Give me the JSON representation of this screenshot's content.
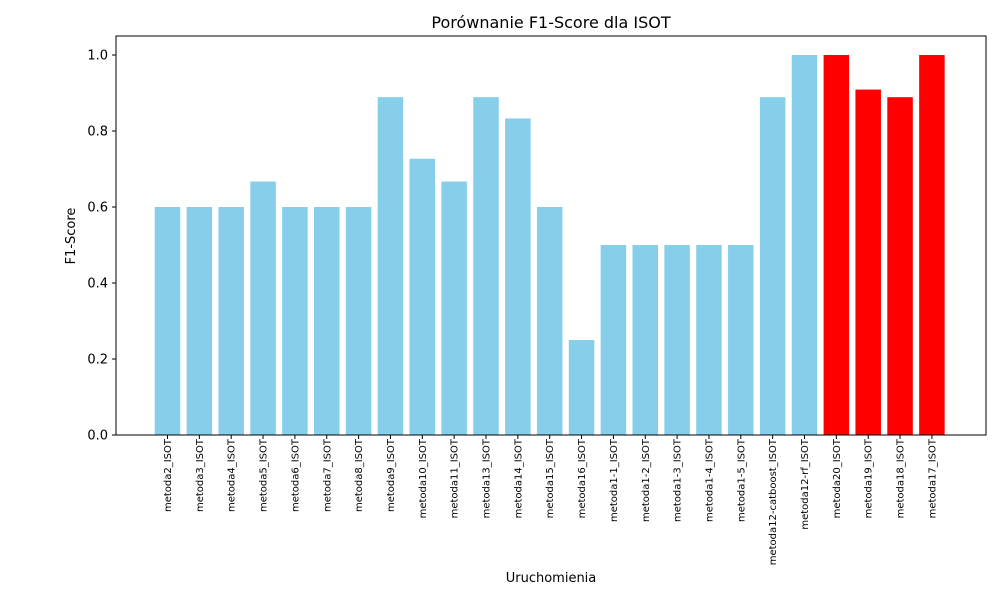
{
  "chart_data": {
    "type": "bar",
    "title": "Porównanie F1-Score dla ISOT",
    "xlabel": "Uruchomienia",
    "ylabel": "F1-Score",
    "ylim": [
      0,
      1.05
    ],
    "yticks": [
      "0.0",
      "0.2",
      "0.4",
      "0.6",
      "0.8",
      "1.0"
    ],
    "grid": false,
    "categories": [
      "metoda2_ISOT",
      "metoda3_ISOT",
      "metoda4_ISOT",
      "metoda5_ISOT",
      "metoda6_ISOT",
      "metoda7_ISOT",
      "metoda8_ISOT",
      "metoda9_ISOT",
      "metoda10_ISOT",
      "metoda11_ISOT",
      "metoda13_ISOT",
      "metoda14_ISOT",
      "metoda15_ISOT",
      "metoda16_ISOT",
      "metoda1-1_ISOT",
      "metoda1-2_ISOT",
      "metoda1-3_ISOT",
      "metoda1-4_ISOT",
      "metoda1-5_ISOT",
      "metoda12-catboost_ISOT",
      "metoda12-rf_ISOT",
      "metoda20_ISOT",
      "metoda19_ISOT",
      "metoda18_ISOT",
      "metoda17_ISOT"
    ],
    "values": [
      0.6,
      0.6,
      0.6,
      0.667,
      0.6,
      0.6,
      0.6,
      0.889,
      0.727,
      0.667,
      0.889,
      0.833,
      0.6,
      0.25,
      0.5,
      0.5,
      0.5,
      0.5,
      0.5,
      0.889,
      1.0,
      1.0,
      0.909,
      0.889,
      1.0
    ],
    "highlight": [
      false,
      false,
      false,
      false,
      false,
      false,
      false,
      false,
      false,
      false,
      false,
      false,
      false,
      false,
      false,
      false,
      false,
      false,
      false,
      false,
      false,
      true,
      true,
      true,
      true
    ],
    "colors": {
      "default": "#87ceeb",
      "highlight": "#ff0000",
      "axis": "#000000"
    }
  }
}
